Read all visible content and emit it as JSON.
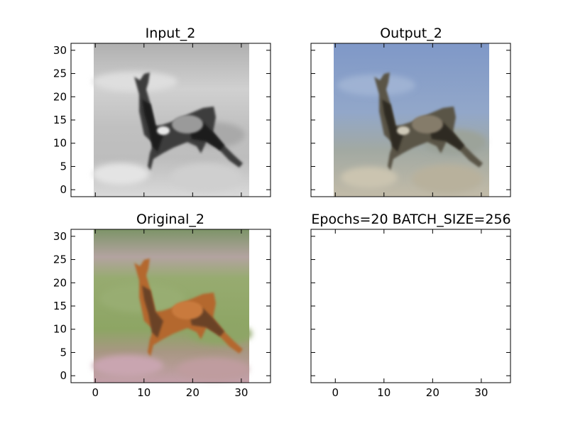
{
  "chart_data": [
    {
      "type": "image",
      "title": "Input_2",
      "image_content": "grayscale",
      "xlim": [
        -5,
        36
      ],
      "ylim": [
        31.5,
        -1.5
      ],
      "x_ticks": [],
      "y_ticks": [
        0,
        5,
        10,
        15,
        20,
        25,
        30
      ]
    },
    {
      "type": "image",
      "title": "Output_2",
      "image_content": "colorized",
      "xlim": [
        -5,
        36
      ],
      "ylim": [
        31.5,
        -1.5
      ],
      "x_ticks": [],
      "y_ticks": []
    },
    {
      "type": "image",
      "title": "Original_2",
      "image_content": "color",
      "xlim": [
        -5,
        36
      ],
      "ylim": [
        31.5,
        -1.5
      ],
      "x_ticks": [
        0,
        10,
        20,
        30
      ],
      "y_ticks": [
        0,
        5,
        10,
        15,
        20,
        25,
        30
      ]
    },
    {
      "type": "empty",
      "title": "Epochs=20 BATCH_SIZE=256",
      "xlim": [
        -5,
        36
      ],
      "ylim": [
        31.5,
        -1.5
      ],
      "x_ticks": [
        0,
        10,
        20,
        30
      ],
      "y_ticks": []
    }
  ],
  "colors": {
    "gray_sky": "#c4c4c4",
    "gray_field": "#b4b4b4",
    "gray_ground": "#d6d6d6",
    "deer_dark": "#3a3a3a",
    "out_sky": "#8fa6cc",
    "out_field": "#9aa49f",
    "out_ground": "#bdb7a4",
    "out_deer": "#4a4236",
    "orig_top": "#89a070",
    "orig_field": "#94a86b",
    "orig_ground": "#b99592",
    "orig_deer": "#b8672e",
    "orig_deer_dark": "#6b4326"
  }
}
